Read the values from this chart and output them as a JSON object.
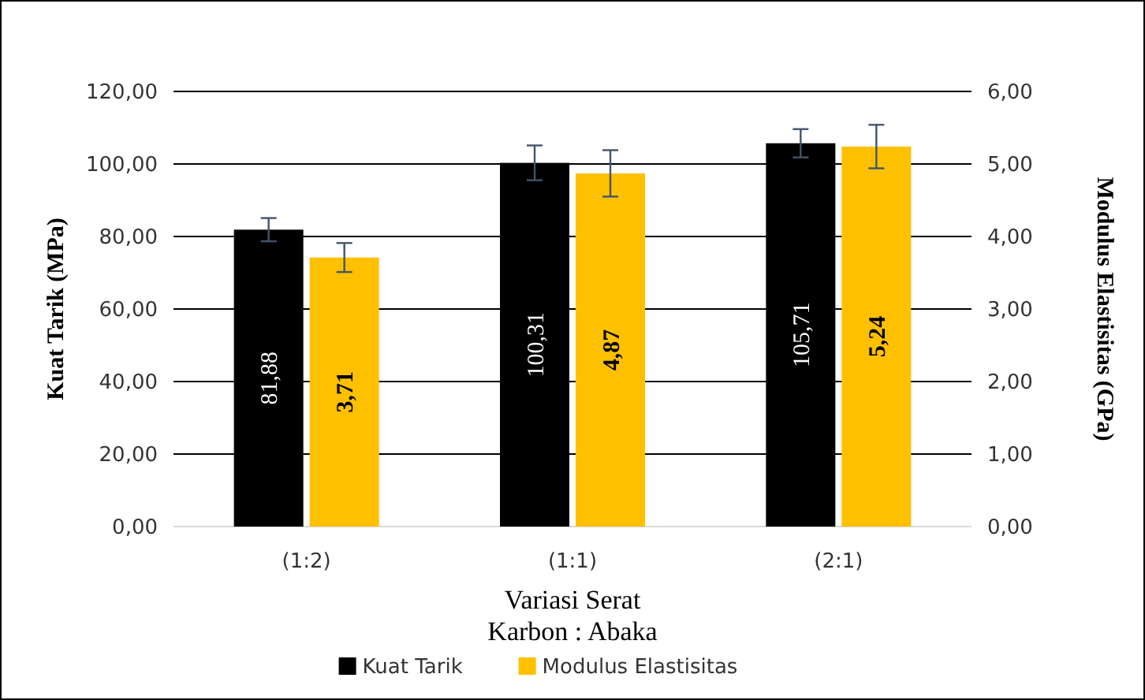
{
  "chart_data": {
    "type": "bar",
    "xlabel": "Variasi Serat\nKarbon : Abaka",
    "ylabel": "Kuat Tarik (MPa)",
    "y2label": "Modulus Elastisitas (GPa)",
    "categories": [
      "(1:2)",
      "(1:1)",
      "(2:1)"
    ],
    "series": [
      {
        "name": "Kuat Tarik",
        "color": "#000000",
        "values": [
          81.88,
          100.31,
          105.71
        ],
        "errors": [
          3.2,
          4.8,
          3.9
        ],
        "value_labels": [
          "81,88",
          "100,31",
          "105,71"
        ]
      },
      {
        "name": "Modulus Elastisitas",
        "color": "#ffc000",
        "axis": "y2",
        "values": [
          3.71,
          4.87,
          5.24
        ],
        "errors": [
          0.2,
          0.32,
          0.3
        ],
        "value_labels": [
          "3,71",
          "4,87",
          "5,24"
        ]
      }
    ],
    "ylim": [
      0,
      120
    ],
    "yticks": [
      {
        "value": 0,
        "label": "0,00"
      },
      {
        "value": 20,
        "label": "20,00"
      },
      {
        "value": 40,
        "label": "40,00"
      },
      {
        "value": 60,
        "label": "60,00"
      },
      {
        "value": 80,
        "label": "80,00"
      },
      {
        "value": 100,
        "label": "100,00"
      },
      {
        "value": 120,
        "label": "120,00"
      }
    ],
    "y2lim": [
      0,
      6
    ],
    "y2ticks": [
      {
        "value": 0,
        "label": "0,00"
      },
      {
        "value": 1,
        "label": "1,00"
      },
      {
        "value": 2,
        "label": "2,00"
      },
      {
        "value": 3,
        "label": "3,00"
      },
      {
        "value": 4,
        "label": "4,00"
      },
      {
        "value": 5,
        "label": "5,00"
      },
      {
        "value": 6,
        "label": "6,00"
      }
    ],
    "grid": "y",
    "legend": "bottom"
  }
}
